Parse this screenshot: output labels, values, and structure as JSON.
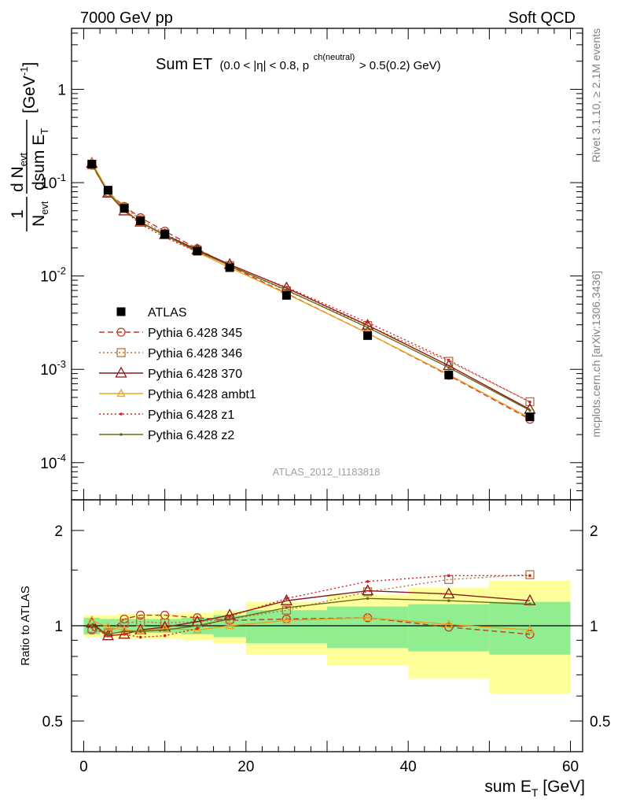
{
  "header": {
    "left": "7000 GeV pp",
    "right": "Soft QCD"
  },
  "title": {
    "main": "Sum ET",
    "cut1": "(0.0 < |η| < 0.8, p",
    "cut_sup": "ch(neutral)",
    "cut2": " > 0.5(0.2) GeV)"
  },
  "side_labels": {
    "rivet": "Rivet 3.1.10, ≥ 2.1M events",
    "mcplots": "mcplots.cern.ch [arXiv:1306.3436]"
  },
  "watermark": "ATLAS_2012_I1183818",
  "yaxis_top": {
    "frac_num": "1",
    "frac_den_main": "N",
    "frac_den_sub": "evt",
    "dnum_main": "d N",
    "dnum_sub": "evt",
    "dden_main": "dsum E",
    "dden_sub": "T",
    "units": "[GeV",
    "units_sup": "-1",
    "units_close": "]",
    "ticks": [
      {
        "main": "10",
        "sup": "-4"
      },
      {
        "main": "10",
        "sup": "-3"
      },
      {
        "main": "10",
        "sup": "-2"
      },
      {
        "main": "10",
        "sup": "-1"
      },
      {
        "main": "1",
        "sup": ""
      }
    ]
  },
  "ratio": {
    "ylabel": "Ratio to ATLAS",
    "ticks": [
      "0.5",
      "1",
      "2"
    ]
  },
  "xaxis": {
    "label_main": "sum E",
    "label_sub": "T",
    "label_units": " [GeV]",
    "ticks": [
      "0",
      "20",
      "40",
      "60"
    ]
  },
  "legend": [
    {
      "label": "ATLAS"
    },
    {
      "label": "Pythia 6.428 345"
    },
    {
      "label": "Pythia 6.428 346"
    },
    {
      "label": "Pythia 6.428 370"
    },
    {
      "label": "Pythia 6.428 ambt1"
    },
    {
      "label": "Pythia 6.428 z1"
    },
    {
      "label": "Pythia 6.428 z2"
    }
  ],
  "chart_data": {
    "type": "line",
    "ylog": true,
    "xlim": [
      -1.5,
      61.5
    ],
    "ylim": [
      4e-05,
      4.5
    ],
    "ratio_ylim": [
      0.4,
      2.5
    ],
    "ratio_log": true,
    "bins": [
      [
        0,
        2
      ],
      [
        2,
        4
      ],
      [
        4,
        6
      ],
      [
        6,
        8
      ],
      [
        8,
        12
      ],
      [
        12,
        16
      ],
      [
        16,
        20
      ],
      [
        20,
        30
      ],
      [
        30,
        40
      ],
      [
        40,
        50
      ],
      [
        50,
        60
      ]
    ],
    "x": [
      1,
      3,
      5,
      7,
      10,
      14,
      18,
      25,
      35,
      45,
      55
    ],
    "data": [
      0.158,
      0.083,
      0.053,
      0.039,
      0.028,
      0.0185,
      0.0123,
      0.0062,
      0.0023,
      0.00087,
      0.00031
    ],
    "band_inner": [
      0.06,
      0.05,
      0.05,
      0.05,
      0.05,
      0.06,
      0.08,
      0.12,
      0.15,
      0.17,
      0.19
    ],
    "band_outer": [
      0.08,
      0.08,
      0.09,
      0.09,
      0.09,
      0.1,
      0.12,
      0.19,
      0.25,
      0.32,
      0.39
    ],
    "series": [
      {
        "name": "Pythia 6.428 345",
        "color": "#c0392b",
        "dash": "7,4",
        "marker": "circle",
        "ratio": [
          0.97,
          0.95,
          1.05,
          1.08,
          1.08,
          1.06,
          1.04,
          1.05,
          1.06,
          0.99,
          0.94
        ]
      },
      {
        "name": "Pythia 6.428 346",
        "color": "#b3743a",
        "dash": "2,3",
        "marker": "square",
        "ratio": [
          0.98,
          0.95,
          1.02,
          1.03,
          1.02,
          1.03,
          1.05,
          1.12,
          1.28,
          1.4,
          1.45
        ]
      },
      {
        "name": "Pythia 6.428 370",
        "color": "#8b1a1a",
        "dash": "",
        "marker": "triangle",
        "ratio": [
          1.02,
          0.93,
          0.94,
          0.97,
          0.99,
          1.03,
          1.08,
          1.2,
          1.29,
          1.26,
          1.2
        ]
      },
      {
        "name": "Pythia 6.428 ambt1",
        "color": "#f0a020",
        "dash": "",
        "marker": "triangle-small",
        "ratio": [
          1.04,
          0.99,
          0.97,
          0.96,
          0.98,
          0.97,
          1.0,
          1.04,
          1.06,
          1.01,
          0.97
        ]
      },
      {
        "name": "Pythia 6.428 z1",
        "color": "#d42020",
        "dash": "2,3",
        "marker": "dot",
        "ratio": [
          0.99,
          0.93,
          0.94,
          0.92,
          0.93,
          0.98,
          1.07,
          1.22,
          1.38,
          1.44,
          1.44
        ]
      },
      {
        "name": "Pythia 6.428 z2",
        "color": "#6b6b1a",
        "dash": "",
        "marker": "dot",
        "ratio": [
          1.0,
          0.94,
          0.96,
          0.96,
          0.97,
          1.0,
          1.05,
          1.14,
          1.22,
          1.2,
          1.17
        ]
      }
    ]
  },
  "colors": {
    "band_inner": "#90ee90",
    "band_outer": "#ffff99",
    "data": "#000000"
  }
}
